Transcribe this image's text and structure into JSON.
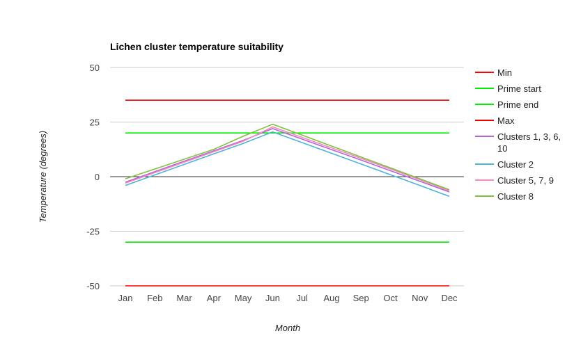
{
  "chart_data": {
    "type": "line",
    "title": "Lichen cluster temperature suitability",
    "xlabel": "Month",
    "ylabel": "Temperature (degrees)",
    "categories": [
      "Jan",
      "Feb",
      "Mar",
      "Apr",
      "May",
      "Jun",
      "Jul",
      "Aug",
      "Sep",
      "Oct",
      "Nov",
      "Dec"
    ],
    "ylim": [
      -50,
      50
    ],
    "yticks": [
      50,
      25,
      0,
      -25,
      -50
    ],
    "grid": true,
    "legend": "right",
    "series": [
      {
        "name": "Min",
        "color": "#ff0000",
        "values": [
          -50,
          -50,
          -50,
          -50,
          -50,
          -50,
          -50,
          -50,
          -50,
          -50,
          -50,
          -50
        ]
      },
      {
        "name": "Prime start",
        "color": "#00ee00",
        "values": [
          -30,
          -30,
          -30,
          -30,
          -30,
          -30,
          -30,
          -30,
          -30,
          -30,
          -30,
          -30
        ]
      },
      {
        "name": "Prime end",
        "color": "#00ee00",
        "values": [
          20,
          20,
          20,
          20,
          20,
          20,
          20,
          20,
          20,
          20,
          20,
          20
        ]
      },
      {
        "name": "Max",
        "color": "#ee0000",
        "values": [
          35,
          35,
          35,
          35,
          35,
          35,
          35,
          35,
          35,
          35,
          35,
          35
        ]
      },
      {
        "name": "Clusters 1, 3, 6, 10",
        "color": "#b366d6",
        "values": [
          -2.5,
          2.3,
          7.1,
          11.8,
          16.6,
          22,
          17.2,
          12.4,
          7.6,
          2.7,
          -2.1,
          -7
        ]
      },
      {
        "name": "Cluster 2",
        "color": "#4db3d9",
        "values": [
          -4,
          0.8,
          5.6,
          10.4,
          15.2,
          20.5,
          15.6,
          10.7,
          5.8,
          0.9,
          -4,
          -9
        ]
      },
      {
        "name": "Cluster 5, 7, 9",
        "color": "#f28cbf",
        "values": [
          -3,
          1.8,
          6.6,
          11.4,
          16.2,
          22.8,
          18,
          13.2,
          8.4,
          3.5,
          -1.4,
          -6.5
        ]
      },
      {
        "name": "Cluster 8",
        "color": "#80c040",
        "values": [
          -1,
          3.5,
          8,
          12.5,
          18.5,
          24,
          19,
          14,
          9,
          4,
          -1,
          -6
        ]
      }
    ]
  }
}
